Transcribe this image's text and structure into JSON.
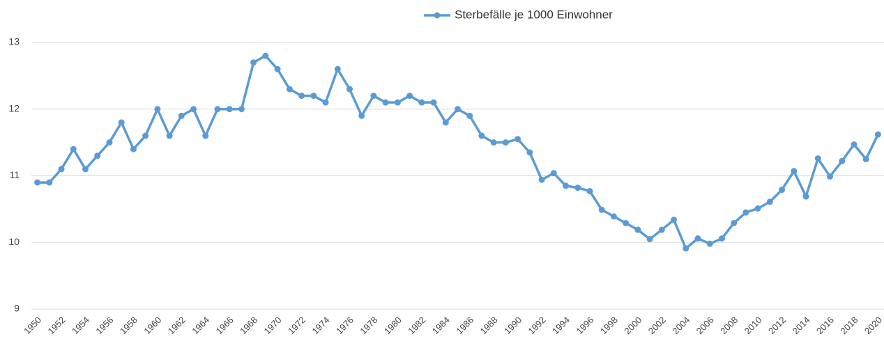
{
  "chart_data": {
    "type": "line",
    "categories": [
      "1950",
      null,
      "1952",
      null,
      "1954",
      null,
      "1956",
      null,
      "1958",
      null,
      "1960",
      null,
      "1962",
      null,
      "1964",
      null,
      "1966",
      null,
      "1968",
      null,
      "1970",
      null,
      "1972",
      null,
      "1974",
      null,
      "1976",
      null,
      "1978",
      null,
      "1980",
      null,
      "1982",
      null,
      "1984",
      null,
      "1986",
      null,
      "1988",
      null,
      "1990",
      null,
      "1992",
      null,
      "1994",
      null,
      "1996",
      null,
      "1998",
      null,
      "2000",
      null,
      "2002",
      null,
      "2004",
      null,
      "2006",
      null,
      "2008",
      null,
      "2010",
      null,
      "2012",
      null,
      "2014",
      null,
      "2016",
      null,
      "2018",
      null,
      "2020"
    ],
    "series": [
      {
        "name": "Sterbefälle je 1000 Einwohner",
        "color": "#5b9bd5",
        "values": [
          10.9,
          10.9,
          11.1,
          11.4,
          11.1,
          11.3,
          11.5,
          11.8,
          11.4,
          11.6,
          12.0,
          11.6,
          11.9,
          12.0,
          11.6,
          12.0,
          12.0,
          12.0,
          12.7,
          12.8,
          12.6,
          12.3,
          12.2,
          12.2,
          12.1,
          12.6,
          12.3,
          11.9,
          12.2,
          12.1,
          12.1,
          12.2,
          12.1,
          12.1,
          11.8,
          12.0,
          11.9,
          11.6,
          11.5,
          11.5,
          11.55,
          11.35,
          10.94,
          11.04,
          10.85,
          10.82,
          10.77,
          10.49,
          10.39,
          10.29,
          10.19,
          10.05,
          10.19,
          10.34,
          9.91,
          10.06,
          9.98,
          10.06,
          10.29,
          10.45,
          10.51,
          10.61,
          10.79,
          11.07,
          10.69,
          11.26,
          10.99,
          11.22,
          11.47,
          11.25,
          11.62
        ]
      }
    ],
    "ylim": [
      9,
      13
    ],
    "yticks": [
      9,
      10,
      11,
      12,
      13
    ],
    "grid": true,
    "legend": "top"
  }
}
